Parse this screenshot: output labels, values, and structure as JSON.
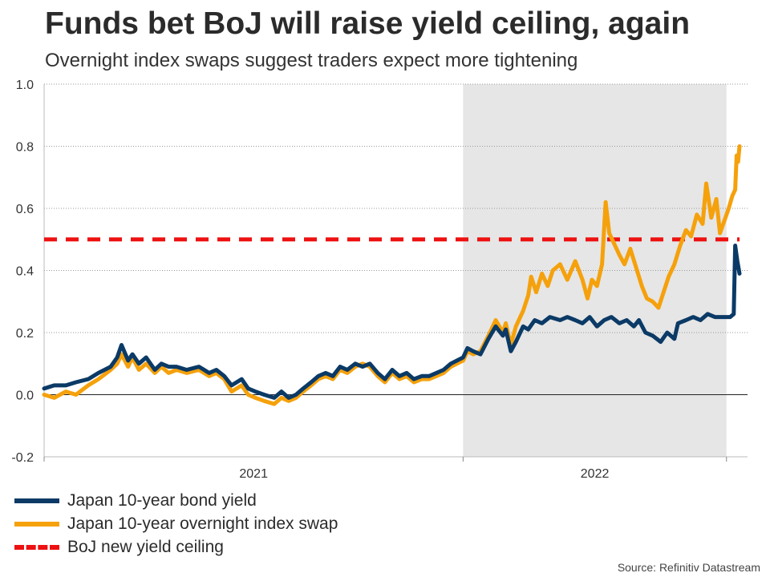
{
  "title": "Funds bet BoJ will raise yield ceiling, again",
  "subtitle": "Overnight index swaps suggest traders expect more tightening",
  "source": "Source: Refinitiv Datastream",
  "chart_data": {
    "type": "line",
    "title": "Funds bet BoJ will raise yield ceiling, again",
    "subtitle": "Overnight index swaps suggest traders expect more tightening",
    "ylim": [
      -0.2,
      1.0
    ],
    "yticks": [
      "-0.2",
      "0.0",
      "0.2",
      "0.4",
      "0.6",
      "0.8",
      "1.0"
    ],
    "xlim": [
      "2020-06-01",
      "2023-01-18"
    ],
    "xticks": [
      {
        "label": "2021",
        "date": "2021-01-01"
      },
      {
        "label": "2022",
        "date": "2022-01-01"
      }
    ],
    "grid": "horizontal dotted",
    "shaded_region": {
      "from": "2022-01-01",
      "to": "2022-12-31",
      "color": "#e6e6e6"
    },
    "legend_position": "bottom-left",
    "series": [
      {
        "name": "Japan 10-year bond yield",
        "color": "#0b3a66",
        "style": "solid",
        "points": [
          [
            "2020-06-01",
            0.02
          ],
          [
            "2020-06-15",
            0.03
          ],
          [
            "2020-07-01",
            0.03
          ],
          [
            "2020-07-15",
            0.04
          ],
          [
            "2020-08-01",
            0.05
          ],
          [
            "2020-08-15",
            0.07
          ],
          [
            "2020-09-01",
            0.09
          ],
          [
            "2020-09-10",
            0.12
          ],
          [
            "2020-09-16",
            0.16
          ],
          [
            "2020-09-25",
            0.11
          ],
          [
            "2020-10-01",
            0.13
          ],
          [
            "2020-10-10",
            0.1
          ],
          [
            "2020-10-20",
            0.12
          ],
          [
            "2020-11-01",
            0.08
          ],
          [
            "2020-11-10",
            0.1
          ],
          [
            "2020-11-20",
            0.09
          ],
          [
            "2020-12-01",
            0.09
          ],
          [
            "2020-12-15",
            0.08
          ],
          [
            "2021-01-01",
            0.09
          ],
          [
            "2021-01-15",
            0.07
          ],
          [
            "2021-01-25",
            0.08
          ],
          [
            "2021-02-05",
            0.06
          ],
          [
            "2021-02-15",
            0.03
          ],
          [
            "2021-03-01",
            0.05
          ],
          [
            "2021-03-10",
            0.02
          ],
          [
            "2021-03-20",
            0.01
          ],
          [
            "2021-04-01",
            0.0
          ],
          [
            "2021-04-15",
            -0.01
          ],
          [
            "2021-04-25",
            0.01
          ],
          [
            "2021-05-05",
            -0.01
          ],
          [
            "2021-05-15",
            0.0
          ],
          [
            "2021-05-25",
            0.02
          ],
          [
            "2021-06-05",
            0.04
          ],
          [
            "2021-06-15",
            0.06
          ],
          [
            "2021-06-25",
            0.07
          ],
          [
            "2021-07-05",
            0.06
          ],
          [
            "2021-07-15",
            0.09
          ],
          [
            "2021-07-25",
            0.08
          ],
          [
            "2021-08-05",
            0.1
          ],
          [
            "2021-08-15",
            0.09
          ],
          [
            "2021-08-25",
            0.1
          ],
          [
            "2021-09-05",
            0.07
          ],
          [
            "2021-09-15",
            0.05
          ],
          [
            "2021-09-25",
            0.08
          ],
          [
            "2021-10-05",
            0.06
          ],
          [
            "2021-10-15",
            0.07
          ],
          [
            "2021-10-25",
            0.05
          ],
          [
            "2021-11-05",
            0.06
          ],
          [
            "2021-11-15",
            0.06
          ],
          [
            "2021-11-25",
            0.07
          ],
          [
            "2021-12-05",
            0.08
          ],
          [
            "2021-12-15",
            0.1
          ],
          [
            "2022-01-01",
            0.12
          ],
          [
            "2022-01-07",
            0.15
          ],
          [
            "2022-01-15",
            0.14
          ],
          [
            "2022-01-25",
            0.13
          ],
          [
            "2022-02-05",
            0.18
          ],
          [
            "2022-02-15",
            0.22
          ],
          [
            "2022-02-25",
            0.19
          ],
          [
            "2022-03-01",
            0.21
          ],
          [
            "2022-03-08",
            0.14
          ],
          [
            "2022-03-15",
            0.17
          ],
          [
            "2022-03-25",
            0.22
          ],
          [
            "2022-04-01",
            0.21
          ],
          [
            "2022-04-10",
            0.24
          ],
          [
            "2022-04-20",
            0.23
          ],
          [
            "2022-05-01",
            0.25
          ],
          [
            "2022-05-15",
            0.24
          ],
          [
            "2022-05-25",
            0.25
          ],
          [
            "2022-06-05",
            0.24
          ],
          [
            "2022-06-15",
            0.23
          ],
          [
            "2022-06-25",
            0.25
          ],
          [
            "2022-07-05",
            0.22
          ],
          [
            "2022-07-15",
            0.24
          ],
          [
            "2022-07-25",
            0.25
          ],
          [
            "2022-08-05",
            0.23
          ],
          [
            "2022-08-15",
            0.24
          ],
          [
            "2022-08-25",
            0.22
          ],
          [
            "2022-09-01",
            0.24
          ],
          [
            "2022-09-10",
            0.2
          ],
          [
            "2022-09-20",
            0.19
          ],
          [
            "2022-10-01",
            0.17
          ],
          [
            "2022-10-10",
            0.2
          ],
          [
            "2022-10-20",
            0.18
          ],
          [
            "2022-10-25",
            0.23
          ],
          [
            "2022-11-05",
            0.24
          ],
          [
            "2022-11-15",
            0.25
          ],
          [
            "2022-11-25",
            0.24
          ],
          [
            "2022-12-05",
            0.26
          ],
          [
            "2022-12-15",
            0.25
          ],
          [
            "2022-12-28",
            0.25
          ],
          [
            "2023-01-05",
            0.25
          ],
          [
            "2023-01-10",
            0.26
          ],
          [
            "2023-01-12",
            0.48
          ],
          [
            "2023-01-15",
            0.43
          ],
          [
            "2023-01-18",
            0.39
          ]
        ]
      },
      {
        "name": "Japan 10-year overnight index swap",
        "color": "#f5a10c",
        "style": "solid",
        "points": [
          [
            "2020-06-01",
            0.0
          ],
          [
            "2020-06-15",
            -0.01
          ],
          [
            "2020-07-01",
            0.01
          ],
          [
            "2020-07-15",
            0.0
          ],
          [
            "2020-08-01",
            0.03
          ],
          [
            "2020-08-15",
            0.05
          ],
          [
            "2020-09-01",
            0.08
          ],
          [
            "2020-09-10",
            0.1
          ],
          [
            "2020-09-16",
            0.13
          ],
          [
            "2020-09-25",
            0.09
          ],
          [
            "2020-10-01",
            0.12
          ],
          [
            "2020-10-10",
            0.08
          ],
          [
            "2020-10-20",
            0.1
          ],
          [
            "2020-11-01",
            0.07
          ],
          [
            "2020-11-10",
            0.09
          ],
          [
            "2020-11-20",
            0.07
          ],
          [
            "2020-12-01",
            0.08
          ],
          [
            "2020-12-15",
            0.07
          ],
          [
            "2021-01-01",
            0.08
          ],
          [
            "2021-01-15",
            0.06
          ],
          [
            "2021-01-25",
            0.07
          ],
          [
            "2021-02-05",
            0.05
          ],
          [
            "2021-02-15",
            0.01
          ],
          [
            "2021-03-01",
            0.03
          ],
          [
            "2021-03-10",
            0.0
          ],
          [
            "2021-03-20",
            -0.01
          ],
          [
            "2021-04-01",
            -0.02
          ],
          [
            "2021-04-15",
            -0.03
          ],
          [
            "2021-04-25",
            -0.01
          ],
          [
            "2021-05-05",
            -0.02
          ],
          [
            "2021-05-15",
            -0.01
          ],
          [
            "2021-05-25",
            0.01
          ],
          [
            "2021-06-05",
            0.03
          ],
          [
            "2021-06-15",
            0.05
          ],
          [
            "2021-06-25",
            0.06
          ],
          [
            "2021-07-05",
            0.05
          ],
          [
            "2021-07-15",
            0.08
          ],
          [
            "2021-07-25",
            0.07
          ],
          [
            "2021-08-05",
            0.09
          ],
          [
            "2021-08-15",
            0.1
          ],
          [
            "2021-08-25",
            0.09
          ],
          [
            "2021-09-05",
            0.06
          ],
          [
            "2021-09-15",
            0.04
          ],
          [
            "2021-09-25",
            0.07
          ],
          [
            "2021-10-05",
            0.05
          ],
          [
            "2021-10-15",
            0.06
          ],
          [
            "2021-10-25",
            0.04
          ],
          [
            "2021-11-05",
            0.05
          ],
          [
            "2021-11-15",
            0.05
          ],
          [
            "2021-11-25",
            0.06
          ],
          [
            "2021-12-05",
            0.07
          ],
          [
            "2021-12-15",
            0.09
          ],
          [
            "2022-01-01",
            0.11
          ],
          [
            "2022-01-07",
            0.14
          ],
          [
            "2022-01-15",
            0.13
          ],
          [
            "2022-01-25",
            0.14
          ],
          [
            "2022-02-05",
            0.19
          ],
          [
            "2022-02-15",
            0.24
          ],
          [
            "2022-02-25",
            0.2
          ],
          [
            "2022-03-01",
            0.23
          ],
          [
            "2022-03-08",
            0.16
          ],
          [
            "2022-03-15",
            0.22
          ],
          [
            "2022-03-25",
            0.27
          ],
          [
            "2022-04-01",
            0.32
          ],
          [
            "2022-04-05",
            0.38
          ],
          [
            "2022-04-12",
            0.33
          ],
          [
            "2022-04-20",
            0.39
          ],
          [
            "2022-04-28",
            0.35
          ],
          [
            "2022-05-05",
            0.4
          ],
          [
            "2022-05-15",
            0.42
          ],
          [
            "2022-05-25",
            0.37
          ],
          [
            "2022-06-05",
            0.43
          ],
          [
            "2022-06-15",
            0.37
          ],
          [
            "2022-06-22",
            0.31
          ],
          [
            "2022-06-28",
            0.37
          ],
          [
            "2022-07-05",
            0.35
          ],
          [
            "2022-07-12",
            0.42
          ],
          [
            "2022-07-17",
            0.62
          ],
          [
            "2022-07-22",
            0.52
          ],
          [
            "2022-07-30",
            0.48
          ],
          [
            "2022-08-05",
            0.45
          ],
          [
            "2022-08-12",
            0.42
          ],
          [
            "2022-08-20",
            0.47
          ],
          [
            "2022-08-28",
            0.41
          ],
          [
            "2022-09-05",
            0.35
          ],
          [
            "2022-09-12",
            0.31
          ],
          [
            "2022-09-20",
            0.3
          ],
          [
            "2022-09-28",
            0.28
          ],
          [
            "2022-10-05",
            0.33
          ],
          [
            "2022-10-12",
            0.38
          ],
          [
            "2022-10-20",
            0.42
          ],
          [
            "2022-10-28",
            0.48
          ],
          [
            "2022-11-05",
            0.53
          ],
          [
            "2022-11-12",
            0.51
          ],
          [
            "2022-11-20",
            0.58
          ],
          [
            "2022-11-28",
            0.55
          ],
          [
            "2022-12-03",
            0.68
          ],
          [
            "2022-12-10",
            0.57
          ],
          [
            "2022-12-17",
            0.63
          ],
          [
            "2022-12-22",
            0.52
          ],
          [
            "2022-12-28",
            0.56
          ],
          [
            "2023-01-03",
            0.6
          ],
          [
            "2023-01-08",
            0.64
          ],
          [
            "2023-01-12",
            0.66
          ],
          [
            "2023-01-14",
            0.77
          ],
          [
            "2023-01-16",
            0.75
          ],
          [
            "2023-01-18",
            0.8
          ]
        ]
      },
      {
        "name": "BoJ new yield ceiling",
        "color": "#ee1111",
        "style": "dashed",
        "points": [
          [
            "2020-06-01",
            0.5
          ],
          [
            "2023-01-18",
            0.5
          ]
        ]
      }
    ]
  },
  "legend": [
    {
      "label": "Japan 10-year bond yield",
      "color": "#0b3a66",
      "style": "solid"
    },
    {
      "label": "Japan 10-year overnight index swap",
      "color": "#f5a10c",
      "style": "solid"
    },
    {
      "label": "BoJ new yield ceiling",
      "color": "#ee1111",
      "style": "dashed"
    }
  ]
}
